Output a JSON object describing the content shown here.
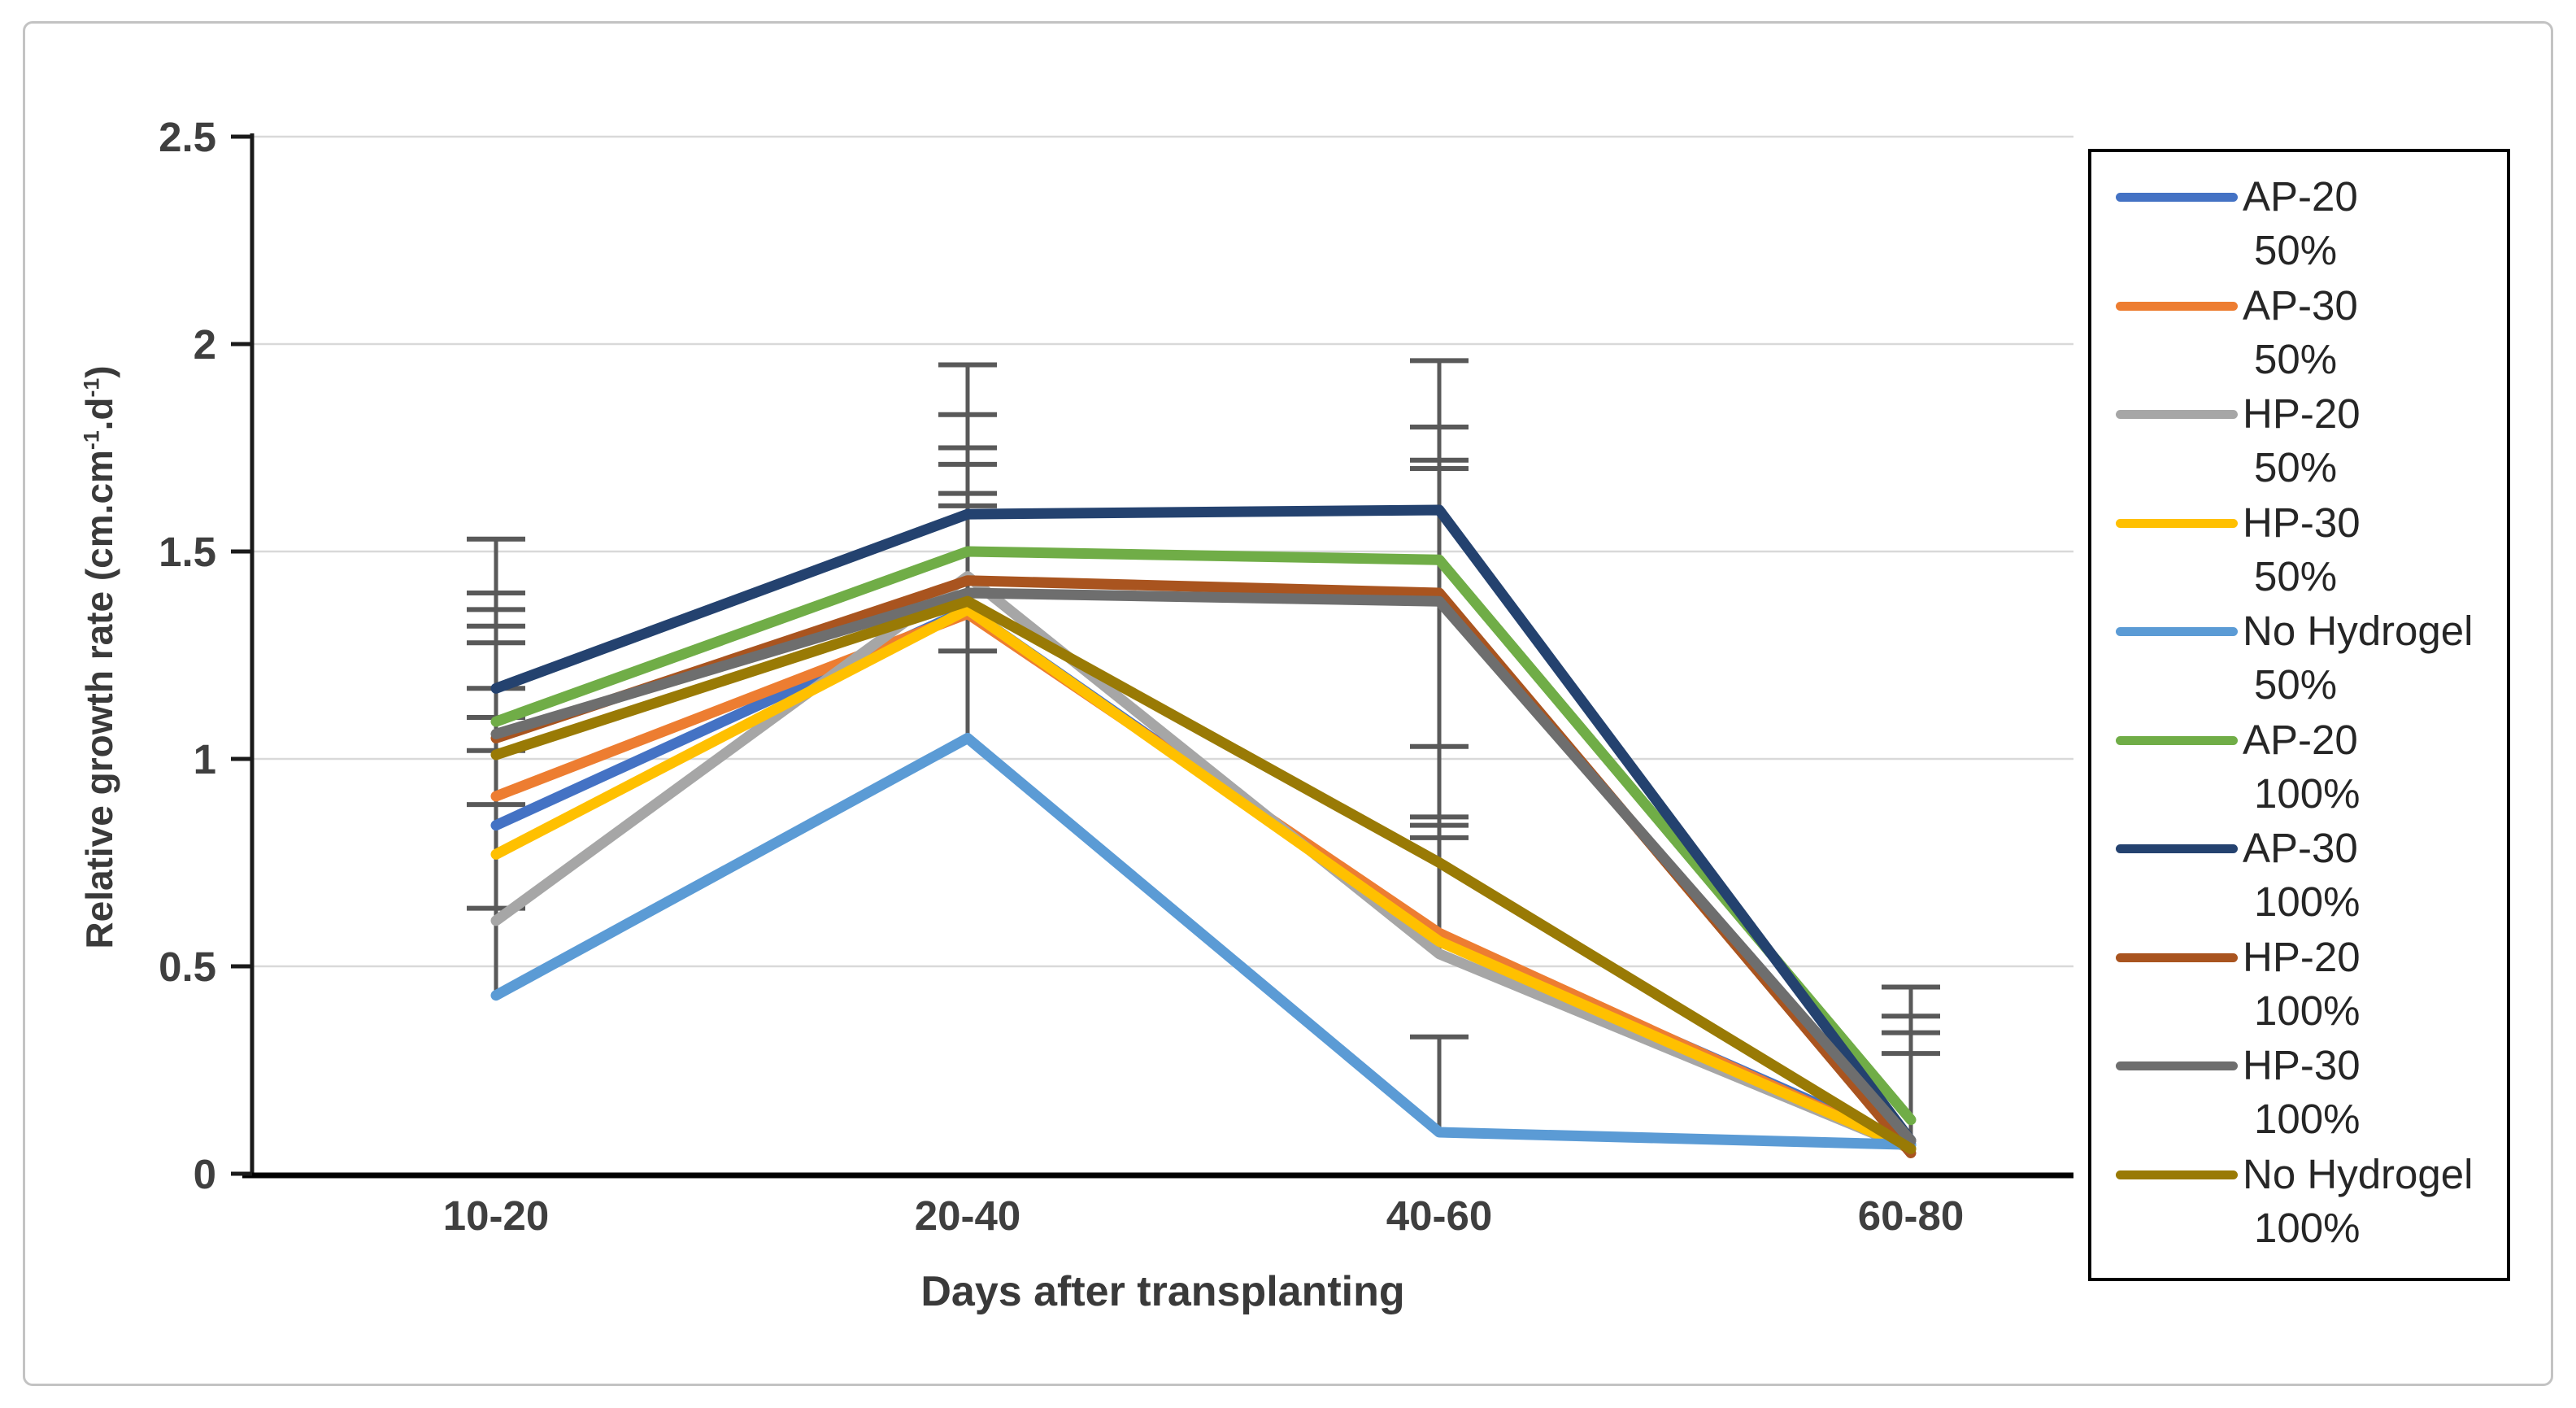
{
  "chart_data": {
    "type": "line",
    "title": "",
    "xlabel": "Days after transplanting",
    "ylabel_text": "Relative growth rate (cm.cm-1.d-1)",
    "ylabel_parts": {
      "pre": "Relative growth rate (cm.cm",
      "sup1": "-1",
      "mid": ".d",
      "sup2": "-1",
      "post": ")"
    },
    "categories": [
      "10-20",
      "20-40",
      "40-60",
      "60-80"
    ],
    "y_ticks": [
      "2.5",
      "2",
      "1.5",
      "1",
      "0.5",
      "0"
    ],
    "y_tick_values": [
      2.5,
      2,
      1.5,
      1,
      0.5,
      0
    ],
    "ylim": [
      0,
      2.5
    ],
    "grid": true,
    "legend_position": "right",
    "series": [
      {
        "name": "AP-20",
        "percent": "50%",
        "color": "#4472C4",
        "values": [
          0.84,
          1.36,
          0.57,
          0.07
        ]
      },
      {
        "name": "AP-30",
        "percent": "50%",
        "color": "#ED7D31",
        "values": [
          0.91,
          1.35,
          0.58,
          0.06
        ]
      },
      {
        "name": "HP-20",
        "percent": "50%",
        "color": "#A6A6A6",
        "values": [
          0.61,
          1.44,
          0.53,
          0.06
        ]
      },
      {
        "name": "HP-30",
        "percent": "50%",
        "color": "#FFC000",
        "values": [
          0.77,
          1.36,
          0.56,
          0.06
        ]
      },
      {
        "name": "No Hydrogel",
        "percent": "50%",
        "color": "#5B9BD5",
        "values": [
          0.43,
          1.05,
          0.1,
          0.07
        ]
      },
      {
        "name": "AP-20",
        "percent": "100%",
        "color": "#70AD47",
        "values": [
          1.09,
          1.5,
          1.48,
          0.13
        ]
      },
      {
        "name": "AP-30",
        "percent": "100%",
        "color": "#24426F",
        "values": [
          1.17,
          1.59,
          1.6,
          0.08
        ]
      },
      {
        "name": "HP-20",
        "percent": "100%",
        "color": "#A9541F",
        "values": [
          1.05,
          1.43,
          1.4,
          0.05
        ]
      },
      {
        "name": "HP-30",
        "percent": "100%",
        "color": "#6E6E6E",
        "values": [
          1.06,
          1.4,
          1.38,
          0.08
        ]
      },
      {
        "name": "No Hydrogel",
        "percent": "100%",
        "color": "#997A05",
        "values": [
          1.01,
          1.38,
          0.75,
          0.06
        ]
      }
    ],
    "error_bars": [
      {
        "category": 0,
        "from": 0.43,
        "to": 1.53,
        "caps": [
          1.53,
          1.4,
          1.36,
          1.32,
          1.28,
          1.17,
          1.1,
          1.02,
          0.89,
          0.64
        ]
      },
      {
        "category": 1,
        "from": 1.05,
        "to": 1.95,
        "caps": [
          1.95,
          1.83,
          1.75,
          1.71,
          1.64,
          1.61,
          1.26
        ]
      },
      {
        "category": 2,
        "from": 0.54,
        "to": 1.96,
        "caps": [
          1.96,
          1.8,
          1.72,
          1.7,
          1.03,
          0.86,
          0.84,
          0.81
        ]
      },
      {
        "category": 2,
        "from": 0.1,
        "to": 0.33,
        "caps": [
          0.33
        ]
      },
      {
        "category": 3,
        "from": 0.08,
        "to": 0.45,
        "caps": [
          0.45,
          0.38,
          0.34,
          0.29
        ]
      }
    ],
    "error_bar_color": "#595959"
  }
}
